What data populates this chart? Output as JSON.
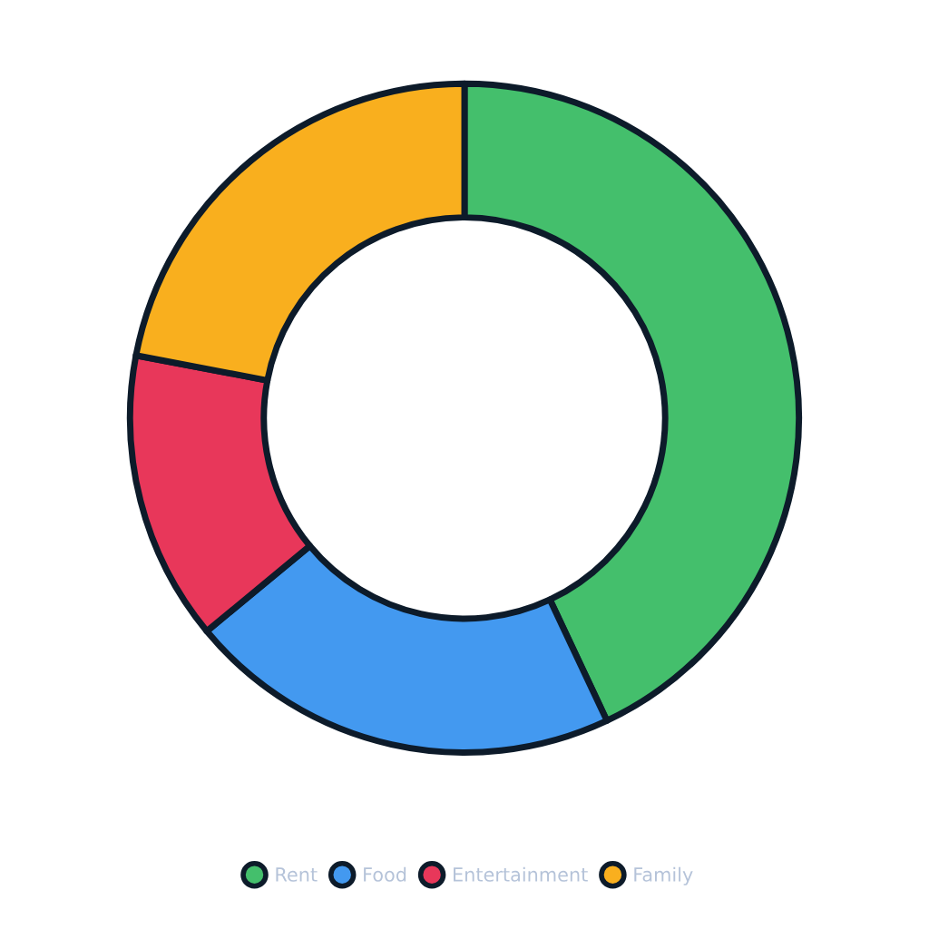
{
  "chart_data": {
    "type": "donut",
    "categories": [
      "Rent",
      "Food",
      "Entertainment",
      "Family"
    ],
    "values": [
      43,
      21,
      14,
      22
    ],
    "colors": [
      "#44bf6c",
      "#4399f0",
      "#e8375a",
      "#f9af1e"
    ],
    "legend": "bottom"
  }
}
